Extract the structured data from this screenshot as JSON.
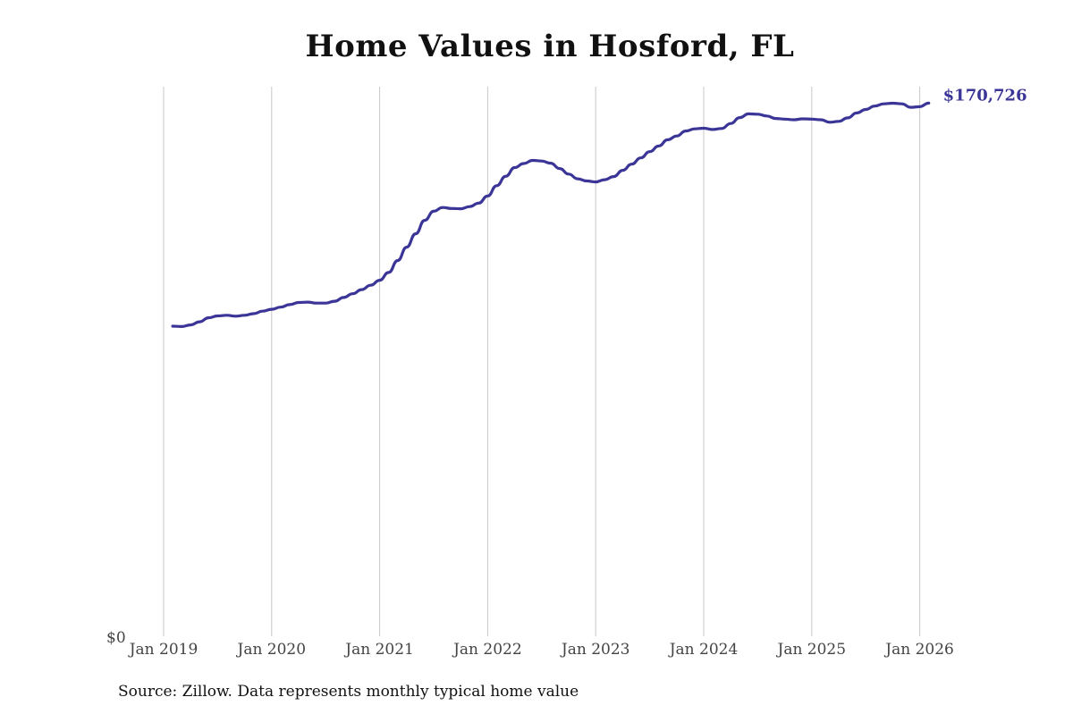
{
  "colors": {
    "line": "#3a3597",
    "grid": "#c8c8c8",
    "text": "#111111"
  },
  "source_note": "Source: Zillow. Data represents monthly typical home value",
  "chart_data": {
    "type": "line",
    "title": "Home Values in Hosford, FL",
    "xlabel": "",
    "ylabel": "",
    "x_ticks": [
      "Jan 2019",
      "Jan 2020",
      "Jan 2021",
      "Jan 2022",
      "Jan 2023",
      "Jan 2024",
      "Jan 2025",
      "Jan 2026"
    ],
    "y_ticks": [
      "$0"
    ],
    "ylim": [
      0,
      176000
    ],
    "grid": "vertical",
    "end_label": "$170,726",
    "series": [
      {
        "x": [
          "2019-02",
          "2019-03",
          "2019-04",
          "2019-05",
          "2019-06",
          "2019-07",
          "2019-08",
          "2019-09",
          "2019-10",
          "2019-11",
          "2019-12",
          "2020-01",
          "2020-02",
          "2020-03",
          "2020-04",
          "2020-05",
          "2020-06",
          "2020-07",
          "2020-08",
          "2020-09",
          "2020-10",
          "2020-11",
          "2020-12",
          "2021-01",
          "2021-02",
          "2021-03",
          "2021-04",
          "2021-05",
          "2021-06",
          "2021-07",
          "2021-08",
          "2021-09",
          "2021-10",
          "2021-11",
          "2021-12",
          "2022-01",
          "2022-02",
          "2022-03",
          "2022-04",
          "2022-05",
          "2022-06",
          "2022-07",
          "2022-08",
          "2022-09",
          "2022-10",
          "2022-11",
          "2022-12",
          "2023-01",
          "2023-02",
          "2023-03",
          "2023-04",
          "2023-05",
          "2023-06",
          "2023-07",
          "2023-08",
          "2023-09",
          "2023-10",
          "2023-11",
          "2023-12",
          "2024-01",
          "2024-02",
          "2024-03",
          "2024-04",
          "2024-05",
          "2024-06",
          "2024-07",
          "2024-08",
          "2024-09",
          "2024-10",
          "2024-11",
          "2024-12",
          "2025-01",
          "2025-02",
          "2025-03",
          "2025-04",
          "2025-05",
          "2025-06",
          "2025-07",
          "2025-08",
          "2025-09",
          "2025-10",
          "2025-11",
          "2025-12",
          "2026-01",
          "2026-02"
        ],
        "values": [
          99300,
          99200,
          99700,
          100700,
          102000,
          102600,
          102800,
          102500,
          102800,
          103300,
          104100,
          104700,
          105400,
          106200,
          106900,
          107000,
          106700,
          106700,
          107300,
          108500,
          109700,
          111000,
          112400,
          114000,
          116500,
          120300,
          124600,
          128900,
          133200,
          136100,
          137300,
          137000,
          136900,
          137600,
          138700,
          141000,
          144300,
          147300,
          150100,
          151400,
          152400,
          152200,
          151500,
          149800,
          148000,
          146500,
          145800,
          145500,
          146200,
          147200,
          149200,
          151200,
          153200,
          155200,
          157000,
          159000,
          160200,
          161800,
          162500,
          162700,
          162300,
          162600,
          164200,
          166100,
          167300,
          167200,
          166600,
          165800,
          165600,
          165400,
          165700,
          165600,
          165400,
          164600,
          164900,
          166000,
          167600,
          168700,
          169800,
          170500,
          170700,
          170500,
          169400,
          169600,
          170726
        ]
      }
    ]
  }
}
